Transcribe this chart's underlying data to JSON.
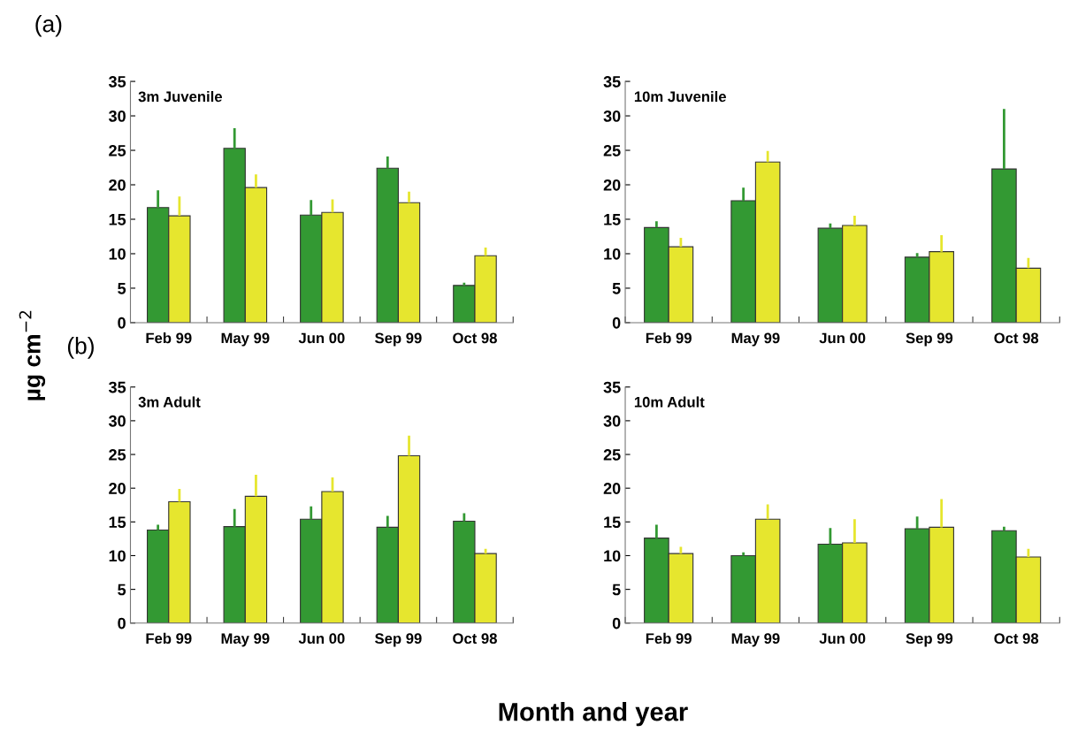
{
  "chart_data": [
    {
      "type": "bar",
      "title": "3m Juvenile",
      "ylabel": "µg cm$^{−2}$",
      "annotations": [
        "(a)"
      ],
      "categories": [
        "Feb 99",
        "May 99",
        "Jun 00",
        "Sep 99",
        "Oct 98"
      ],
      "ylim": [
        0,
        35
      ],
      "yticks": [
        0,
        5,
        10,
        15,
        20,
        25,
        30,
        35
      ],
      "grid": false,
      "legend": false,
      "series": [
        {
          "color": "#339933",
          "values": [
            16.7,
            25.3,
            15.6,
            22.4,
            5.4
          ],
          "errors": [
            [
              16.7,
              19.2
            ],
            [
              25.3,
              28.2
            ],
            [
              15.6,
              17.8
            ],
            [
              22.4,
              24.1
            ],
            [
              5.4,
              5.8
            ]
          ]
        },
        {
          "color": "#e6e62e",
          "values": [
            15.5,
            19.6,
            16.0,
            17.4,
            9.7
          ],
          "errors": [
            [
              15.5,
              18.3
            ],
            [
              19.6,
              21.5
            ],
            [
              16.0,
              17.9
            ],
            [
              17.4,
              19.0
            ],
            [
              9.7,
              10.9
            ]
          ]
        }
      ]
    },
    {
      "type": "bar",
      "title": "10m Juvenile",
      "categories": [
        "Feb 99",
        "May 99",
        "Jun 00",
        "Sep 99",
        "Oct 98"
      ],
      "ylim": [
        0,
        35
      ],
      "yticks": [
        0,
        5,
        10,
        15,
        20,
        25,
        30,
        35
      ],
      "grid": false,
      "legend": false,
      "series": [
        {
          "color": "#339933",
          "values": [
            13.8,
            17.7,
            13.7,
            9.5,
            22.3
          ],
          "errors": [
            [
              13.8,
              14.7
            ],
            [
              17.7,
              19.6
            ],
            [
              13.7,
              14.4
            ],
            [
              9.5,
              10.1
            ],
            [
              22.3,
              31.0
            ]
          ]
        },
        {
          "color": "#e6e62e",
          "values": [
            11.0,
            23.3,
            14.1,
            10.3,
            7.9
          ],
          "errors": [
            [
              11.0,
              12.3
            ],
            [
              23.3,
              24.9
            ],
            [
              14.1,
              15.5
            ],
            [
              10.3,
              12.7
            ],
            [
              7.9,
              9.4
            ]
          ]
        }
      ]
    },
    {
      "type": "bar",
      "title": "3m Adult",
      "xlabel": "Month and year",
      "annotations": [
        "(b)"
      ],
      "categories": [
        "Feb 99",
        "May 99",
        "Jun 00",
        "Sep 99",
        "Oct 98"
      ],
      "ylim": [
        0,
        35
      ],
      "yticks": [
        0,
        5,
        10,
        15,
        20,
        25,
        30,
        35
      ],
      "grid": false,
      "legend": false,
      "series": [
        {
          "color": "#339933",
          "values": [
            13.8,
            14.3,
            15.4,
            14.2,
            15.1
          ],
          "errors": [
            [
              13.8,
              14.6
            ],
            [
              14.3,
              16.9
            ],
            [
              15.4,
              17.3
            ],
            [
              14.2,
              15.9
            ],
            [
              15.1,
              16.3
            ]
          ]
        },
        {
          "color": "#e6e62e",
          "values": [
            18.0,
            18.8,
            19.5,
            24.8,
            10.3
          ],
          "errors": [
            [
              18.0,
              19.9
            ],
            [
              18.8,
              22.0
            ],
            [
              19.5,
              21.6
            ],
            [
              24.8,
              27.8
            ],
            [
              10.3,
              11.0
            ]
          ]
        }
      ]
    },
    {
      "type": "bar",
      "title": "10m Adult",
      "categories": [
        "Feb 99",
        "May 99",
        "Jun 00",
        "Sep 99",
        "Oct 98"
      ],
      "ylim": [
        0,
        35
      ],
      "yticks": [
        0,
        5,
        10,
        15,
        20,
        25,
        30,
        35
      ],
      "grid": false,
      "legend": false,
      "series": [
        {
          "color": "#339933",
          "values": [
            12.6,
            10.0,
            11.7,
            14.0,
            13.7
          ],
          "errors": [
            [
              12.6,
              14.6
            ],
            [
              10.0,
              10.5
            ],
            [
              11.7,
              14.1
            ],
            [
              14.0,
              15.8
            ],
            [
              13.7,
              14.3
            ]
          ]
        },
        {
          "color": "#e6e62e",
          "values": [
            10.3,
            15.4,
            11.9,
            14.2,
            9.8
          ],
          "errors": [
            [
              10.3,
              11.3
            ],
            [
              15.4,
              17.6
            ],
            [
              11.9,
              15.4
            ],
            [
              14.2,
              18.4
            ],
            [
              9.8,
              11.0
            ]
          ]
        }
      ]
    }
  ]
}
